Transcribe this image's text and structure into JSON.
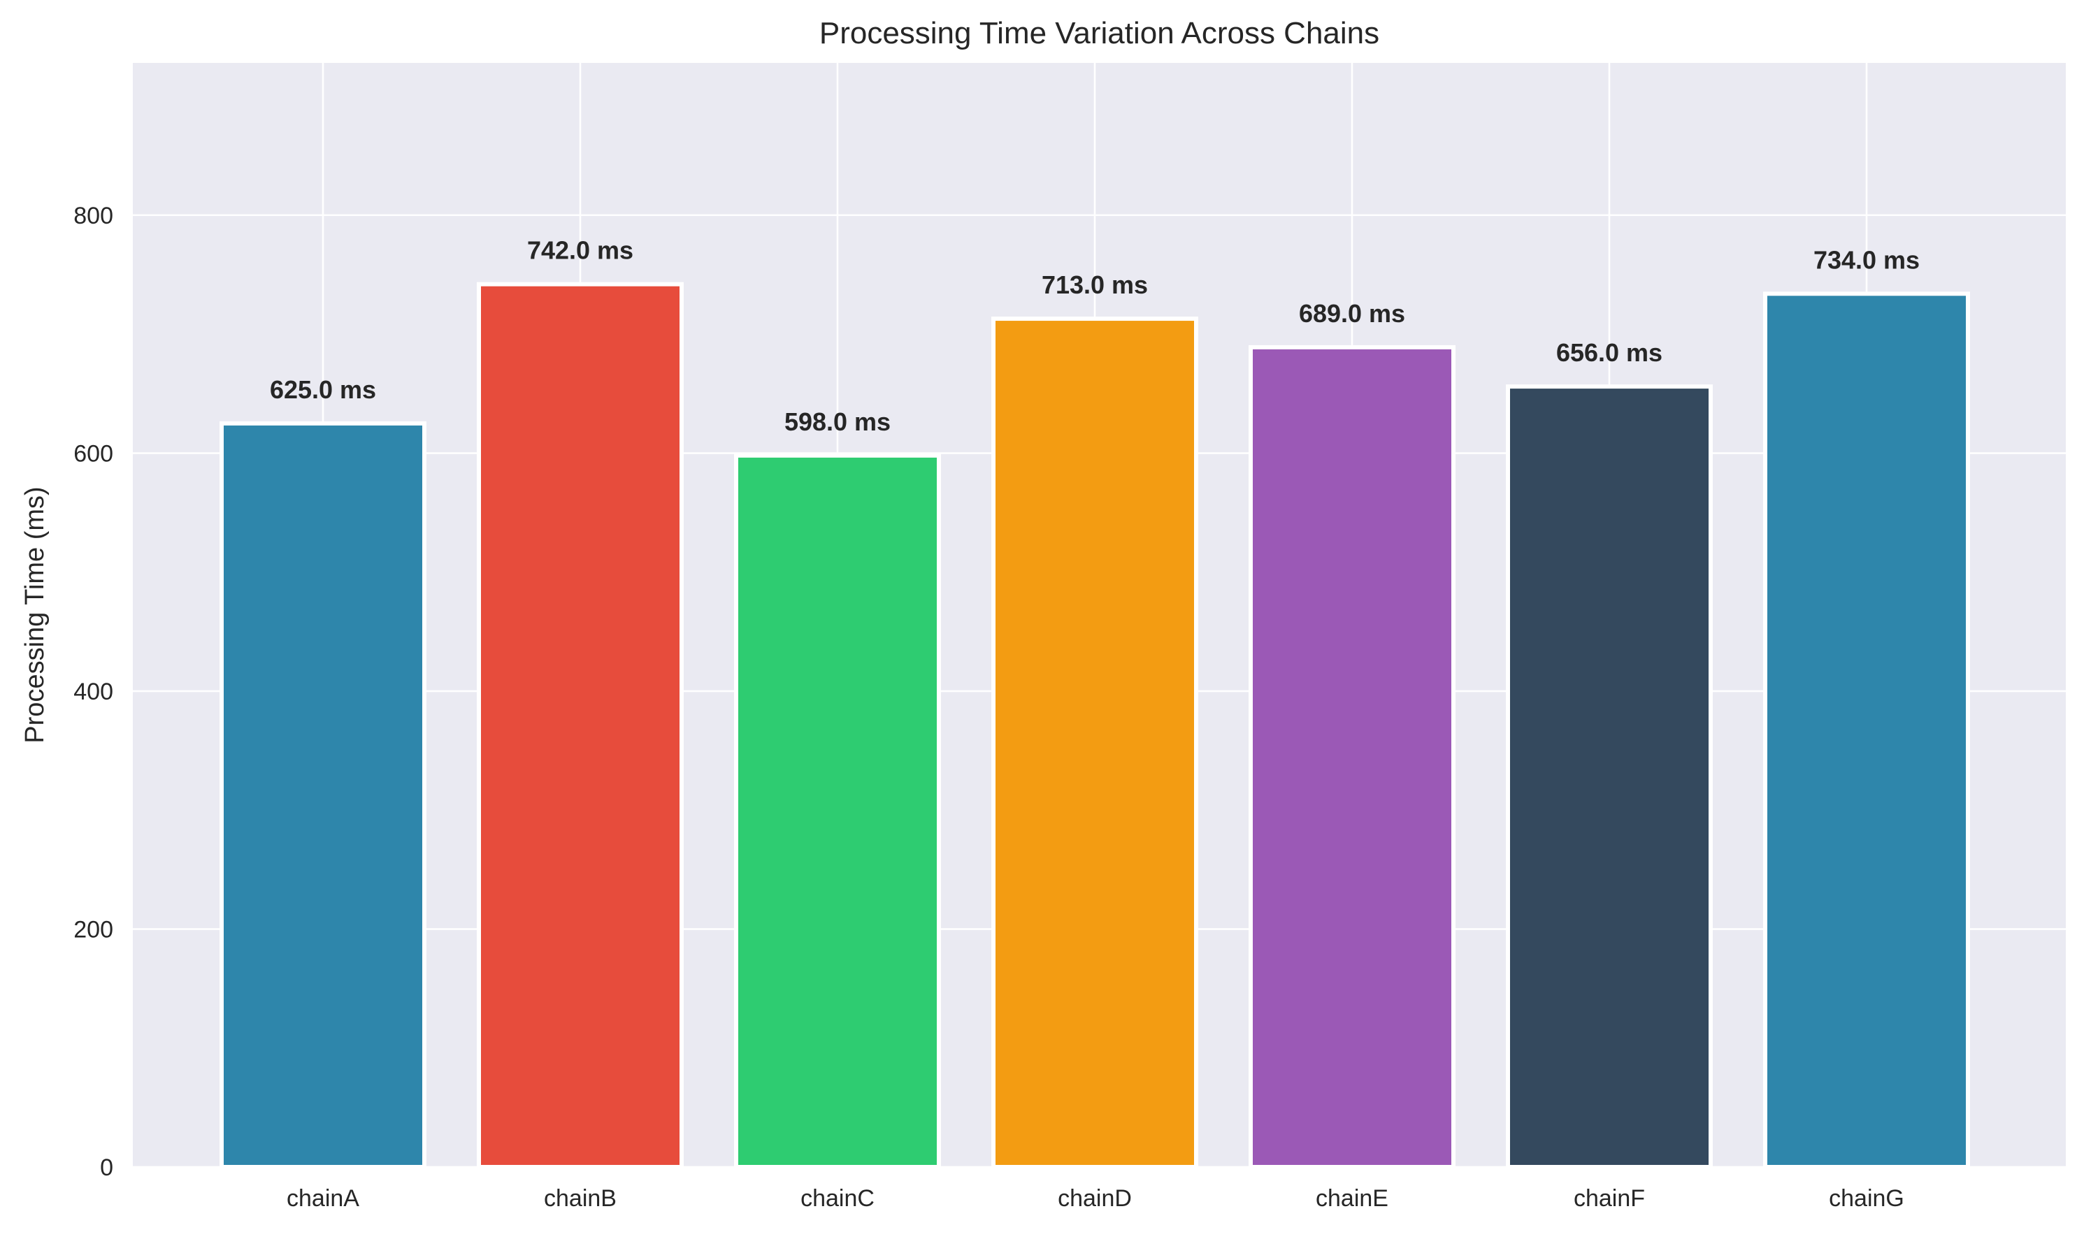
{
  "chart_data": {
    "type": "bar",
    "title": "Processing Time Variation Across Chains",
    "xlabel": "",
    "ylabel": "Processing Time (ms)",
    "categories": [
      "chainA",
      "chainB",
      "chainC",
      "chainD",
      "chainE",
      "chainF",
      "chainG"
    ],
    "values": [
      625.0,
      742.0,
      598.0,
      713.0,
      689.0,
      656.0,
      734.0
    ],
    "value_labels": [
      "625.0 ms",
      "742.0 ms",
      "598.0 ms",
      "713.0 ms",
      "689.0 ms",
      "656.0 ms",
      "734.0 ms"
    ],
    "colors": [
      "#2e86ab",
      "#e74c3c",
      "#2ecc71",
      "#f39c12",
      "#9b59b6",
      "#34495e",
      "#2e86ab"
    ],
    "ylim": [
      0,
      928
    ],
    "yticks": [
      0,
      200,
      400,
      600,
      800
    ],
    "grid": true,
    "background": "#eaeaf2"
  }
}
